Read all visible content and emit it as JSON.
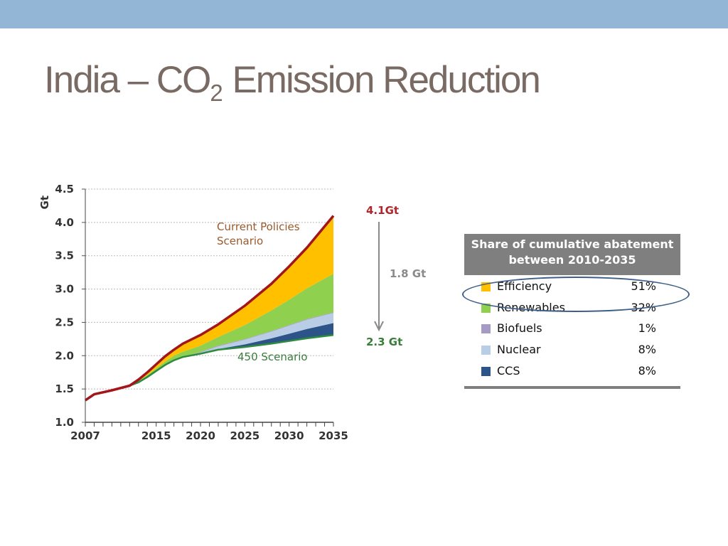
{
  "slide": {
    "title_prefix": "India – CO",
    "title_subscript": "2",
    "title_suffix": " Emission Reduction"
  },
  "colors": {
    "top_band": "#94b6d6",
    "current_policies_line": "#a3151a",
    "scenario_450_line": "#2e8b3e"
  },
  "chart_data": {
    "type": "area",
    "ylabel": "Gt",
    "ylim": [
      1.0,
      4.5
    ],
    "xlim": [
      2007,
      2035
    ],
    "y_ticks": [
      "1.0",
      "1.5",
      "2.0",
      "2.5",
      "3.0",
      "3.5",
      "4.0",
      "4.5"
    ],
    "x_ticks": [
      "2007",
      "2015",
      "2020",
      "2025",
      "2030",
      "2035"
    ],
    "grid": true,
    "stack_order_bottom_to_top": [
      "CCS",
      "Nuclear",
      "Biofuels",
      "Renewables",
      "Efficiency"
    ],
    "x": [
      2007,
      2008,
      2010,
      2012,
      2013,
      2014,
      2015,
      2016,
      2017,
      2018,
      2020,
      2022,
      2025,
      2028,
      2030,
      2032,
      2035
    ],
    "current_policies": [
      1.33,
      1.42,
      1.48,
      1.55,
      1.64,
      1.75,
      1.87,
      1.99,
      2.09,
      2.18,
      2.31,
      2.47,
      2.75,
      3.08,
      3.34,
      3.62,
      4.1
    ],
    "scenario_450": [
      1.33,
      1.42,
      1.48,
      1.55,
      1.6,
      1.68,
      1.77,
      1.86,
      1.93,
      1.98,
      2.03,
      2.09,
      2.13,
      2.18,
      2.22,
      2.26,
      2.31
    ],
    "series": [
      {
        "name": "CCS",
        "color": "#2d5489",
        "values": [
          0,
          0,
          0,
          0,
          0,
          0,
          0,
          0,
          0,
          0,
          0,
          0.01,
          0.04,
          0.08,
          0.11,
          0.14,
          0.18
        ]
      },
      {
        "name": "Nuclear",
        "color": "#b9cde6",
        "values": [
          0,
          0,
          0,
          0,
          0,
          0,
          0,
          0,
          0,
          0,
          0.02,
          0.04,
          0.07,
          0.1,
          0.12,
          0.14,
          0.15
        ]
      },
      {
        "name": "Biofuels",
        "color": "#a69bc4",
        "values": [
          0,
          0,
          0,
          0,
          0,
          0,
          0,
          0,
          0,
          0,
          0.01,
          0.01,
          0.01,
          0.01,
          0.01,
          0.01,
          0.01
        ]
      },
      {
        "name": "Renewables",
        "color": "#8fd14f",
        "values": [
          0,
          0,
          0,
          0,
          0.02,
          0.03,
          0.04,
          0.05,
          0.07,
          0.08,
          0.09,
          0.13,
          0.21,
          0.31,
          0.38,
          0.46,
          0.58
        ]
      },
      {
        "name": "Efficiency",
        "color": "#ffc000",
        "values": [
          0,
          0,
          0,
          0,
          0.02,
          0.04,
          0.06,
          0.08,
          0.09,
          0.12,
          0.16,
          0.2,
          0.29,
          0.4,
          0.5,
          0.61,
          0.87
        ]
      }
    ],
    "annotations": {
      "current_policies_label": [
        "Current Policies",
        "Scenario"
      ],
      "scenario_450_label": "450 Scenario",
      "end_value_top": "4.1Gt",
      "gap": "1.8 Gt",
      "end_value_bottom": "2.3 Gt"
    }
  },
  "legend": {
    "header_line1": "Share of cumulative abatement",
    "header_line2": "between 2010-2035",
    "rows": [
      {
        "name": "Efficiency",
        "share": "51%",
        "color": "#ffc000"
      },
      {
        "name": "Renewables",
        "share": "32%",
        "color": "#8fd14f"
      },
      {
        "name": "Biofuels",
        "share": "1%",
        "color": "#a69bc4"
      },
      {
        "name": "Nuclear",
        "share": "8%",
        "color": "#b9cde6"
      },
      {
        "name": "CCS",
        "share": "8%",
        "color": "#2d5489"
      }
    ]
  }
}
